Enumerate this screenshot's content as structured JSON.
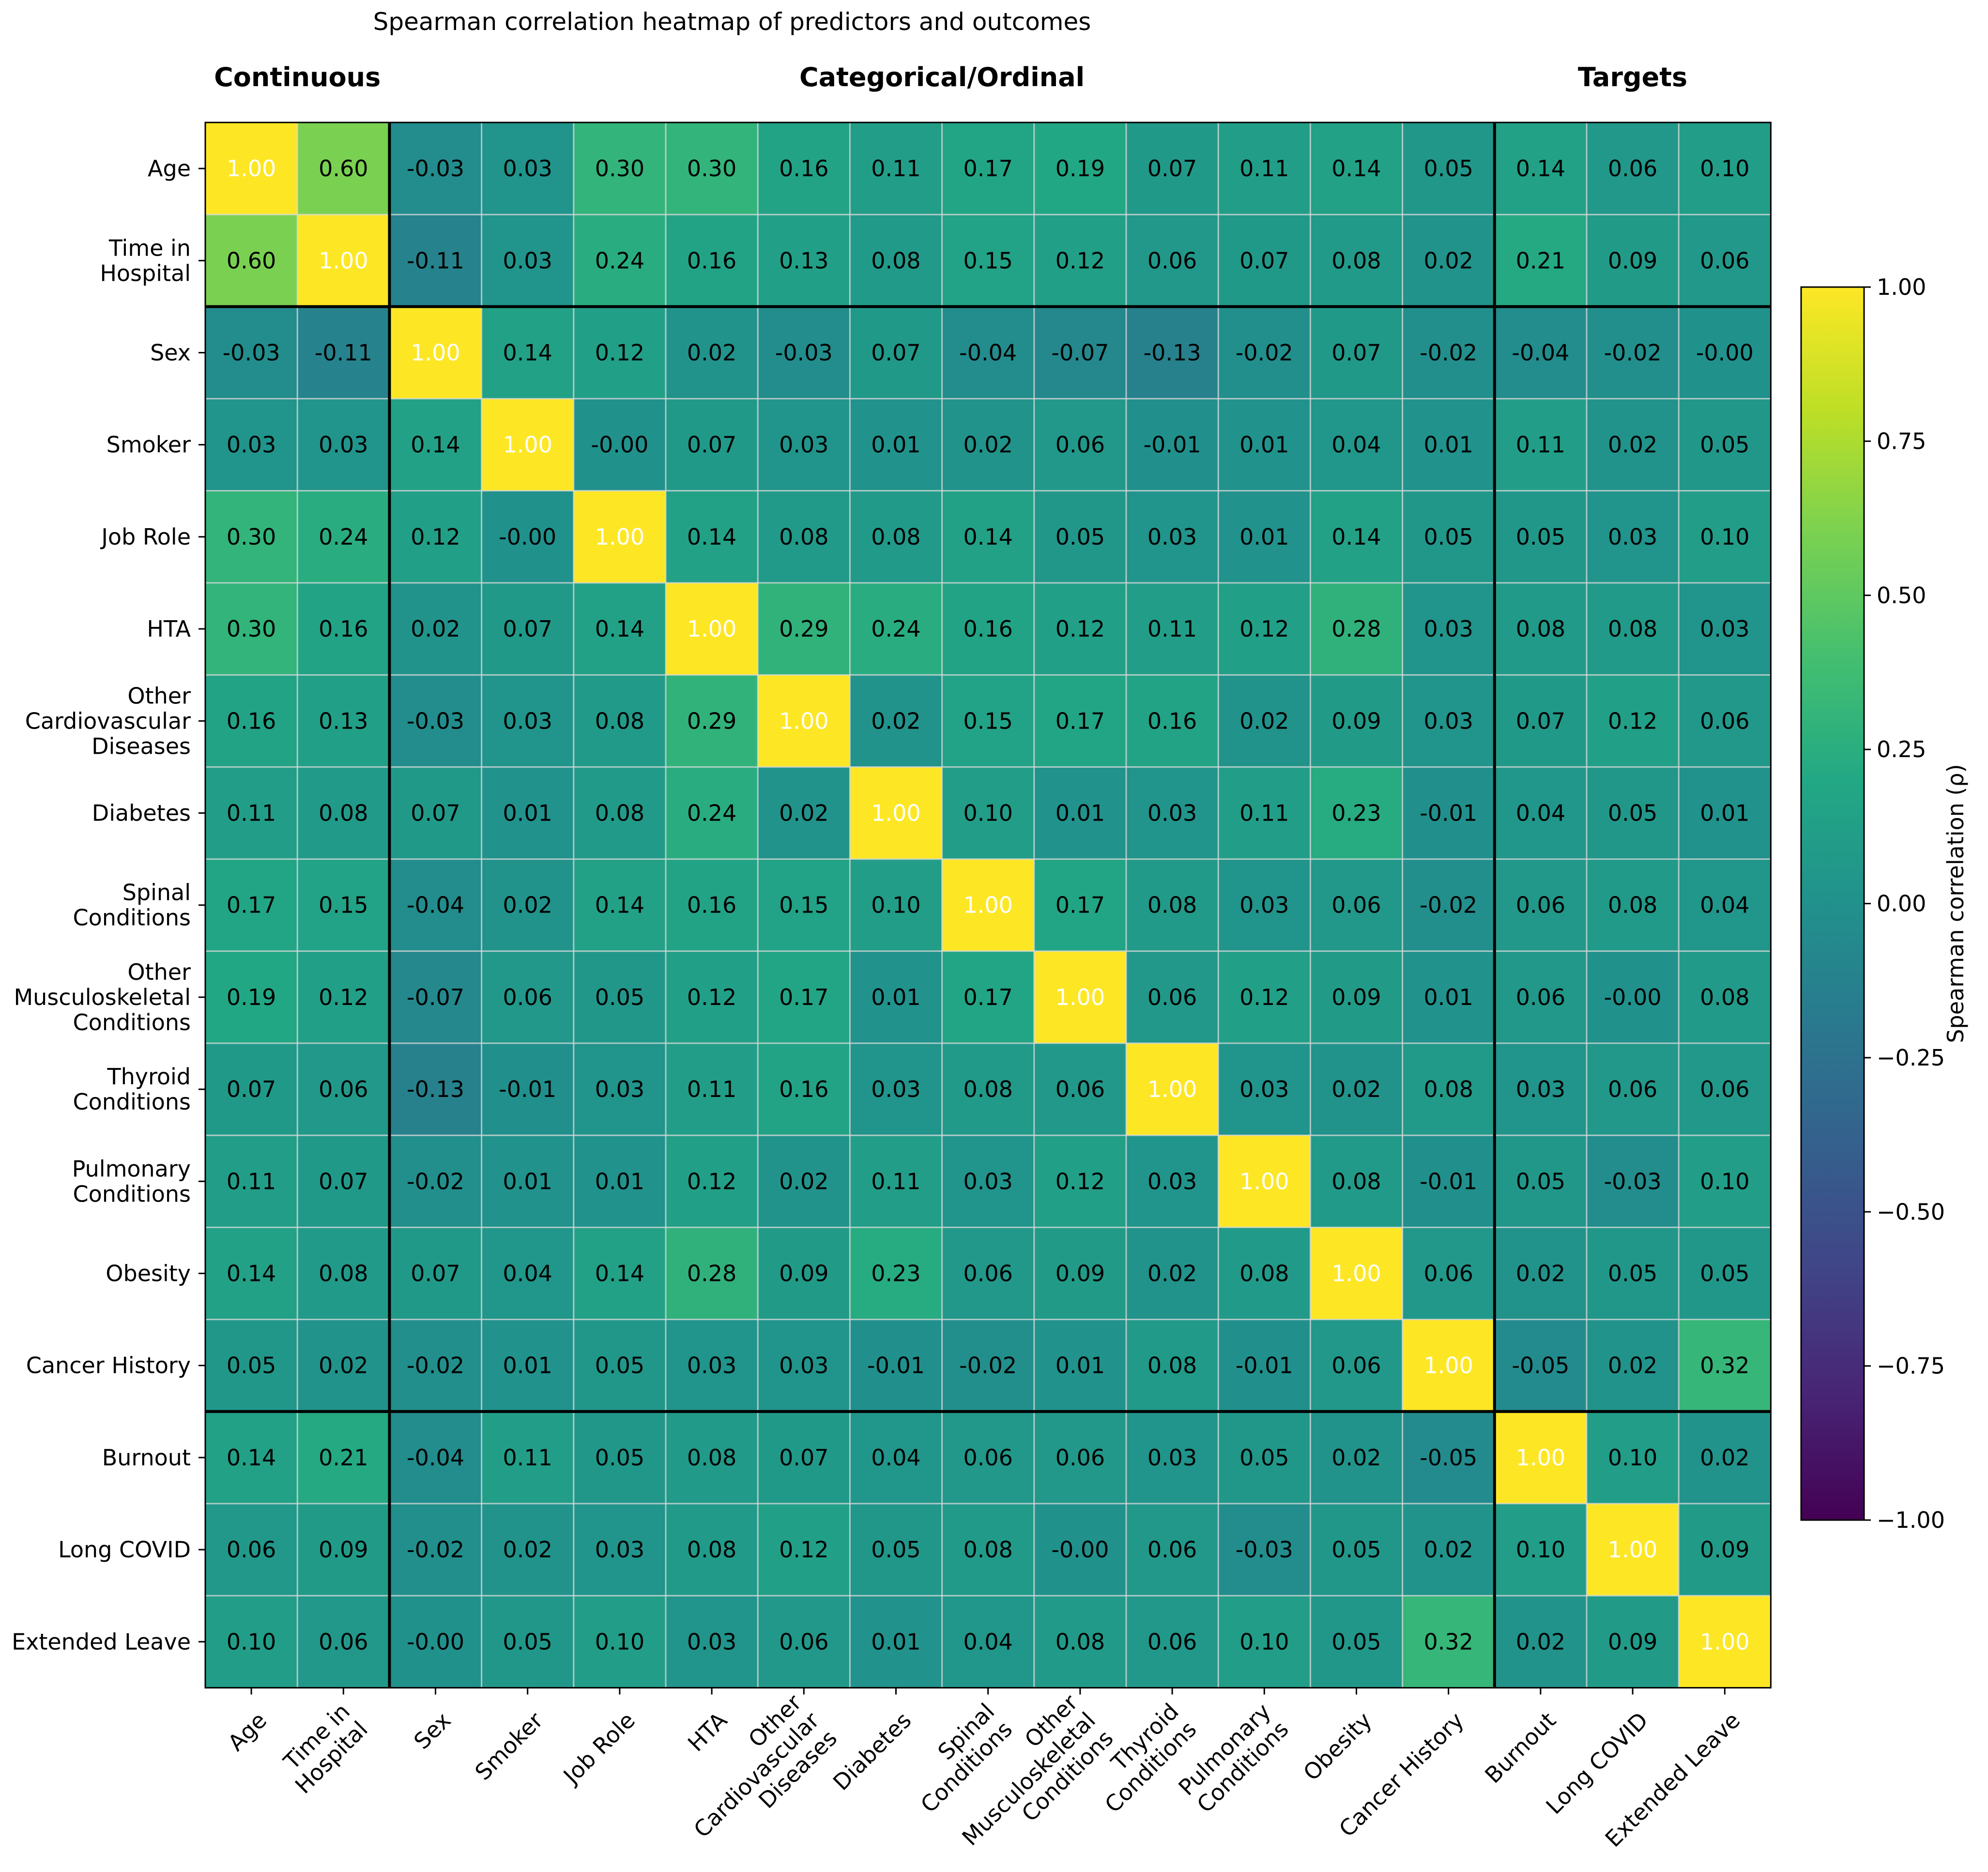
{
  "chart_data": {
    "type": "heatmap",
    "title": "Spearman correlation heatmap of predictors and outcomes",
    "group_headers": [
      "Continuous",
      "Categorical/Ordinal",
      "Targets"
    ],
    "groups": [
      {
        "name": "Continuous",
        "start": 0,
        "end": 1
      },
      {
        "name": "Categorical/Ordinal",
        "start": 2,
        "end": 13
      },
      {
        "name": "Targets",
        "start": 14,
        "end": 16
      }
    ],
    "row_labels": [
      "Age",
      "Time in Hospital",
      "Sex",
      "Smoker",
      "Job Role",
      "HTA",
      "Other Cardiovascular Diseases",
      "Diabetes",
      "Spinal Conditions",
      "Other Musculoskeletal Conditions",
      "Thyroid Conditions",
      "Pulmonary Conditions",
      "Obesity",
      "Cancer History",
      "Burnout",
      "Long COVID",
      "Extended Leave"
    ],
    "row_label_lines": [
      [
        "Age"
      ],
      [
        "Time in",
        "Hospital"
      ],
      [
        "Sex"
      ],
      [
        "Smoker"
      ],
      [
        "Job Role"
      ],
      [
        "HTA"
      ],
      [
        "Other",
        "Cardiovascular",
        "Diseases"
      ],
      [
        "Diabetes"
      ],
      [
        "Spinal",
        "Conditions"
      ],
      [
        "Other",
        "Musculoskeletal",
        "Conditions"
      ],
      [
        "Thyroid",
        "Conditions"
      ],
      [
        "Pulmonary",
        "Conditions"
      ],
      [
        "Obesity"
      ],
      [
        "Cancer History"
      ],
      [
        "Burnout"
      ],
      [
        "Long COVID"
      ],
      [
        "Extended Leave"
      ]
    ],
    "col_labels": [
      "Age",
      "Time in Hospital",
      "Sex",
      "Smoker",
      "Job Role",
      "HTA",
      "Other Cardiovascular Diseases",
      "Diabetes",
      "Spinal Conditions",
      "Other Musculoskeletal Conditions",
      "Thyroid Conditions",
      "Pulmonary Conditions",
      "Obesity",
      "Cancer History",
      "Burnout",
      "Long COVID",
      "Extended Leave"
    ],
    "col_label_lines": [
      [
        "Age"
      ],
      [
        "Time in",
        "Hospital"
      ],
      [
        "Sex"
      ],
      [
        "Smoker"
      ],
      [
        "Job Role"
      ],
      [
        "HTA"
      ],
      [
        "Other",
        "Cardiovascular",
        "Diseases"
      ],
      [
        "Diabetes"
      ],
      [
        "Spinal",
        "Conditions"
      ],
      [
        "Other",
        "Musculoskeletal",
        "Conditions"
      ],
      [
        "Thyroid",
        "Conditions"
      ],
      [
        "Pulmonary",
        "Conditions"
      ],
      [
        "Obesity"
      ],
      [
        "Cancer History"
      ],
      [
        "Burnout"
      ],
      [
        "Long COVID"
      ],
      [
        "Extended Leave"
      ]
    ],
    "values": [
      [
        1.0,
        0.6,
        -0.03,
        0.03,
        0.3,
        0.3,
        0.16,
        0.11,
        0.17,
        0.19,
        0.07,
        0.11,
        0.14,
        0.05,
        0.14,
        0.06,
        0.1
      ],
      [
        0.6,
        1.0,
        -0.11,
        0.03,
        0.24,
        0.16,
        0.13,
        0.08,
        0.15,
        0.12,
        0.06,
        0.07,
        0.08,
        0.02,
        0.21,
        0.09,
        0.06
      ],
      [
        -0.03,
        -0.11,
        1.0,
        0.14,
        0.12,
        0.02,
        -0.03,
        0.07,
        -0.04,
        -0.07,
        -0.13,
        -0.02,
        0.07,
        -0.02,
        -0.04,
        -0.02,
        -0.0
      ],
      [
        0.03,
        0.03,
        0.14,
        1.0,
        -0.0,
        0.07,
        0.03,
        0.01,
        0.02,
        0.06,
        -0.01,
        0.01,
        0.04,
        0.01,
        0.11,
        0.02,
        0.05
      ],
      [
        0.3,
        0.24,
        0.12,
        -0.0,
        1.0,
        0.14,
        0.08,
        0.08,
        0.14,
        0.05,
        0.03,
        0.01,
        0.14,
        0.05,
        0.05,
        0.03,
        0.1
      ],
      [
        0.3,
        0.16,
        0.02,
        0.07,
        0.14,
        1.0,
        0.29,
        0.24,
        0.16,
        0.12,
        0.11,
        0.12,
        0.28,
        0.03,
        0.08,
        0.08,
        0.03
      ],
      [
        0.16,
        0.13,
        -0.03,
        0.03,
        0.08,
        0.29,
        1.0,
        0.02,
        0.15,
        0.17,
        0.16,
        0.02,
        0.09,
        0.03,
        0.07,
        0.12,
        0.06
      ],
      [
        0.11,
        0.08,
        0.07,
        0.01,
        0.08,
        0.24,
        0.02,
        1.0,
        0.1,
        0.01,
        0.03,
        0.11,
        0.23,
        -0.01,
        0.04,
        0.05,
        0.01
      ],
      [
        0.17,
        0.15,
        -0.04,
        0.02,
        0.14,
        0.16,
        0.15,
        0.1,
        1.0,
        0.17,
        0.08,
        0.03,
        0.06,
        -0.02,
        0.06,
        0.08,
        0.04
      ],
      [
        0.19,
        0.12,
        -0.07,
        0.06,
        0.05,
        0.12,
        0.17,
        0.01,
        0.17,
        1.0,
        0.06,
        0.12,
        0.09,
        0.01,
        0.06,
        -0.0,
        0.08
      ],
      [
        0.07,
        0.06,
        -0.13,
        -0.01,
        0.03,
        0.11,
        0.16,
        0.03,
        0.08,
        0.06,
        1.0,
        0.03,
        0.02,
        0.08,
        0.03,
        0.06,
        0.06
      ],
      [
        0.11,
        0.07,
        -0.02,
        0.01,
        0.01,
        0.12,
        0.02,
        0.11,
        0.03,
        0.12,
        0.03,
        1.0,
        0.08,
        -0.01,
        0.05,
        -0.03,
        0.1
      ],
      [
        0.14,
        0.08,
        0.07,
        0.04,
        0.14,
        0.28,
        0.09,
        0.23,
        0.06,
        0.09,
        0.02,
        0.08,
        1.0,
        0.06,
        0.02,
        0.05,
        0.05
      ],
      [
        0.05,
        0.02,
        -0.02,
        0.01,
        0.05,
        0.03,
        0.03,
        -0.01,
        -0.02,
        0.01,
        0.08,
        -0.01,
        0.06,
        1.0,
        -0.05,
        0.02,
        0.32
      ],
      [
        0.14,
        0.21,
        -0.04,
        0.11,
        0.05,
        0.08,
        0.07,
        0.04,
        0.06,
        0.06,
        0.03,
        0.05,
        0.02,
        -0.05,
        1.0,
        0.1,
        0.02
      ],
      [
        0.06,
        0.09,
        -0.02,
        0.02,
        0.03,
        0.08,
        0.12,
        0.05,
        0.08,
        -0.0,
        0.06,
        -0.03,
        0.05,
        0.02,
        0.1,
        1.0,
        0.09
      ],
      [
        0.1,
        0.06,
        -0.0,
        0.05,
        0.1,
        0.03,
        0.06,
        0.01,
        0.04,
        0.08,
        0.06,
        0.1,
        0.05,
        0.32,
        0.02,
        0.09,
        1.0
      ]
    ],
    "value_format": "2 decimals",
    "colormap": "viridis",
    "vmin": -1.0,
    "vmax": 1.0,
    "colorbar": {
      "label": "Spearman correlation (ρ)",
      "ticks": [
        1.0,
        0.75,
        0.5,
        0.25,
        0.0,
        -0.25,
        -0.5,
        -0.75,
        -1.0
      ],
      "tick_labels": [
        "1.00",
        "0.75",
        "0.50",
        "0.25",
        "0.00",
        "−0.25",
        "−0.50",
        "−0.75",
        "−1.00"
      ]
    },
    "grid": true,
    "legend_position": "right"
  }
}
